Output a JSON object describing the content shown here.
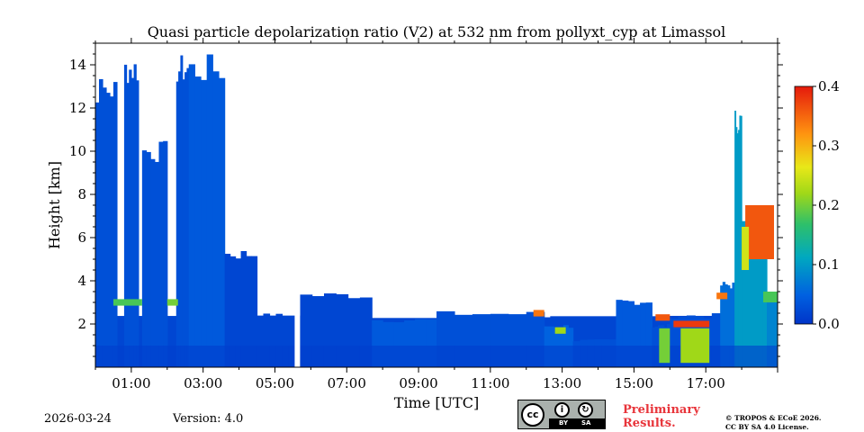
{
  "chart_data": {
    "type": "heatmap",
    "title": "Quasi particle depolarization ratio (V2) at 532 nm from pollyxt_cyp at Limassol",
    "xlabel": "Time [UTC]",
    "ylabel": "Height [km]",
    "x_range_hours": [
      0.0,
      19.0
    ],
    "y_range_km": [
      0.0,
      15.0
    ],
    "x_ticks": [
      {
        "value": 1,
        "label": "01:00"
      },
      {
        "value": 3,
        "label": "03:00"
      },
      {
        "value": 5,
        "label": "05:00"
      },
      {
        "value": 7,
        "label": "07:00"
      },
      {
        "value": 9,
        "label": "09:00"
      },
      {
        "value": 11,
        "label": "11:00"
      },
      {
        "value": 13,
        "label": "13:00"
      },
      {
        "value": 15,
        "label": "15:00"
      },
      {
        "value": 17,
        "label": "17:00"
      }
    ],
    "y_ticks": [
      {
        "value": 2,
        "label": "2"
      },
      {
        "value": 4,
        "label": "4"
      },
      {
        "value": 6,
        "label": "6"
      },
      {
        "value": 8,
        "label": "8"
      },
      {
        "value": 10,
        "label": "10"
      },
      {
        "value": 12,
        "label": "12"
      },
      {
        "value": 14,
        "label": "14"
      }
    ],
    "colorbar": {
      "range": [
        0.0,
        0.4
      ],
      "ticks": [
        {
          "value": 0.0,
          "label": "0.0"
        },
        {
          "value": 0.1,
          "label": "0.1"
        },
        {
          "value": 0.2,
          "label": "0.2"
        },
        {
          "value": 0.3,
          "label": "0.3"
        },
        {
          "value": 0.4,
          "label": "0.4"
        }
      ],
      "colormap": "jet"
    },
    "data_gap_hours": [
      5.55,
      5.7
    ],
    "regions": [
      {
        "x": [
          0.0,
          19.0
        ],
        "top": 2.5,
        "value": 0.02,
        "note": "boundary layer"
      },
      {
        "x": [
          0.0,
          0.6
        ],
        "top": 13.5,
        "value": 0.03
      },
      {
        "x": [
          0.8,
          1.2
        ],
        "top": 14.5,
        "value": 0.03
      },
      {
        "x": [
          1.3,
          2.0
        ],
        "top": 10.5,
        "value": 0.03
      },
      {
        "x": [
          2.25,
          2.6
        ],
        "top": 14.5,
        "value": 0.03
      },
      {
        "x": [
          2.6,
          3.6
        ],
        "top": 14.5,
        "value": 0.04
      },
      {
        "x": [
          3.6,
          4.5
        ],
        "top": 5.5,
        "value": 0.02
      },
      {
        "x": [
          4.5,
          5.55
        ],
        "top": 2.5,
        "value": 0.02
      },
      {
        "x": [
          5.7,
          7.7
        ],
        "top": 3.5,
        "value": 0.02
      },
      {
        "x": [
          7.7,
          9.5
        ],
        "top": 2.3,
        "value": 0.04
      },
      {
        "x": [
          9.5,
          12.5
        ],
        "top": 2.6,
        "value": 0.03
      },
      {
        "x": [
          12.5,
          13.3
        ],
        "top": 2.0,
        "value": 0.05
      },
      {
        "x": [
          13.3,
          14.5
        ],
        "top": 1.3,
        "value": 0.03
      },
      {
        "x": [
          14.5,
          15.5
        ],
        "top": 3.2,
        "value": 0.04
      },
      {
        "x": [
          15.5,
          16.0
        ],
        "top": 2.0,
        "value": 0.03
      },
      {
        "x": [
          16.0,
          17.4
        ],
        "top": 2.5,
        "value": 0.03
      },
      {
        "x": [
          17.4,
          17.8
        ],
        "top": 4.0,
        "value": 0.06
      },
      {
        "x": [
          17.8,
          18.0
        ],
        "top": 12.0,
        "value": 0.1
      },
      {
        "x": [
          18.0,
          18.7
        ],
        "top": 7.0,
        "value": 0.1
      },
      {
        "x": [
          18.7,
          19.0
        ],
        "top": 3.5,
        "value": 0.08
      }
    ],
    "layers": [
      {
        "x": [
          0.5,
          1.3
        ],
        "height": 3.0,
        "value": 0.18
      },
      {
        "x": [
          2.0,
          2.3
        ],
        "height": 3.0,
        "value": 0.2
      },
      {
        "x": [
          12.2,
          12.5
        ],
        "height": 2.5,
        "value": 0.34
      },
      {
        "x": [
          12.8,
          13.1
        ],
        "height": 1.7,
        "value": 0.22
      },
      {
        "x": [
          15.6,
          16.0
        ],
        "height": 2.3,
        "value": 0.36
      },
      {
        "x": [
          16.1,
          17.1
        ],
        "height": 2.0,
        "value": 0.38
      },
      {
        "x": [
          16.4,
          17.0
        ],
        "height": 1.5,
        "value": 0.36
      },
      {
        "x": [
          17.3,
          17.6
        ],
        "height": 3.3,
        "value": 0.34
      }
    ],
    "columns": [
      {
        "x": [
          15.7,
          16.0
        ],
        "bottom": 0.2,
        "top": 1.8,
        "value": 0.2
      },
      {
        "x": [
          16.3,
          17.1
        ],
        "bottom": 0.2,
        "top": 1.8,
        "value": 0.22
      }
    ],
    "plumes": [
      {
        "x": [
          18.1,
          18.9
        ],
        "bottom": 5.0,
        "top": 7.5,
        "value": 0.36
      },
      {
        "x": [
          18.0,
          18.2
        ],
        "bottom": 4.5,
        "top": 6.5,
        "value": 0.25
      },
      {
        "x": [
          18.6,
          19.0
        ],
        "bottom": 3.0,
        "top": 3.5,
        "value": 0.18
      }
    ]
  },
  "footer": {
    "date": "2026-03-24",
    "version": "Version: 4.0",
    "preliminary_line1": "Preliminary",
    "preliminary_line2": "Results.",
    "copyright_line1": "© TROPOS & ECoE 2026.",
    "copyright_line2": "CC BY SA 4.0 License.",
    "license_badge": {
      "cc": "cc",
      "by": "BY",
      "sa": "SA"
    }
  }
}
